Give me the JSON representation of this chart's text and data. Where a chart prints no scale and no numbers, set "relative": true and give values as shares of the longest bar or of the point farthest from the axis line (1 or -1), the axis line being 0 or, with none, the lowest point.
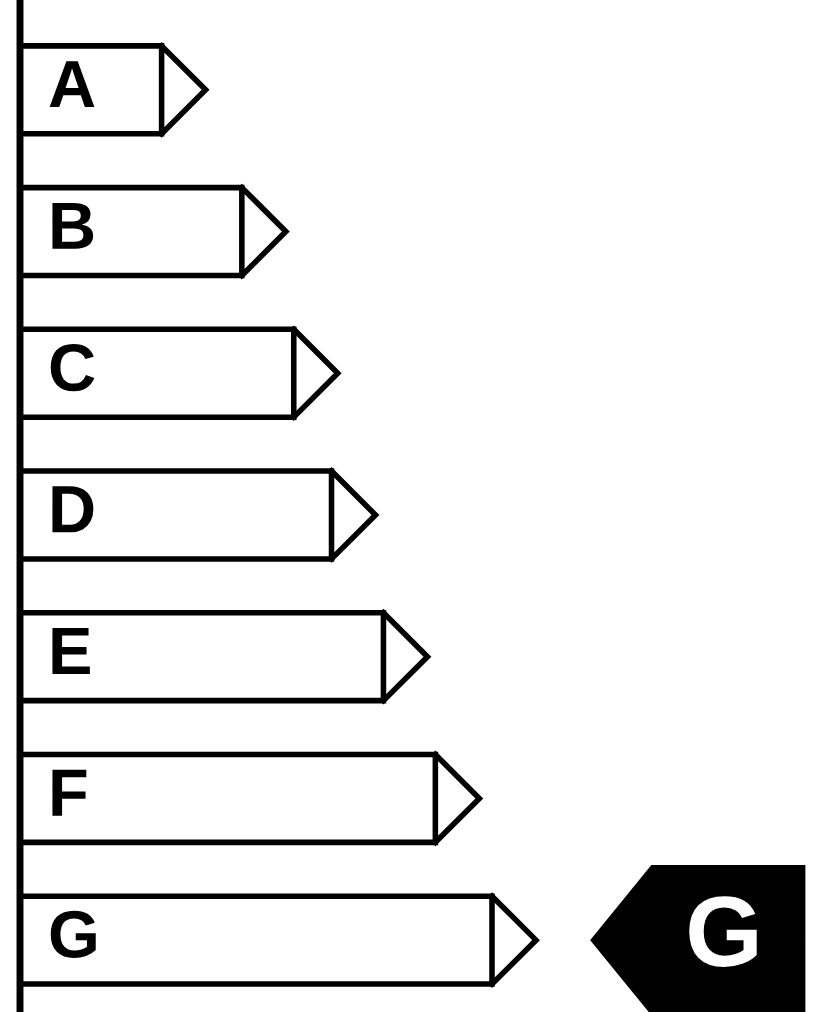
{
  "chart_data": {
    "type": "bar",
    "orientation": "horizontal",
    "relative": true,
    "categories": [
      "A",
      "B",
      "C",
      "D",
      "E",
      "F",
      "G"
    ],
    "values": [
      0.3,
      0.47,
      0.58,
      0.66,
      0.77,
      0.88,
      1.0
    ],
    "color": "#ffffff",
    "annotations": [
      "G"
    ]
  }
}
